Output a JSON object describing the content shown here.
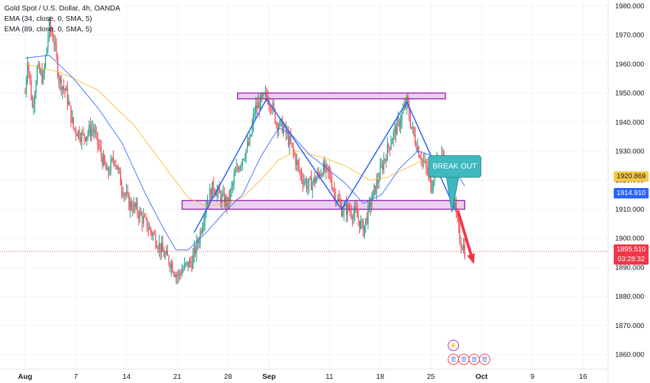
{
  "legend": {
    "title": "Gold Spot / U.S. Dollar, 4h, OANDA",
    "ema1": "EMA (34, close, 0, SMA, 5)",
    "ema2": "EMA (89, close, 0, SMA, 5)"
  },
  "annotation": {
    "breakout_label": "BREAK OUT"
  },
  "price_labels": {
    "ema89": "1920.869",
    "ema34": "1914.910",
    "last_price": "1895.510",
    "countdown": "03:28:32"
  },
  "colors": {
    "up": "#089981",
    "down": "#f23645",
    "ema34": "#2962ff",
    "ema89": "#f7b731",
    "zone_fill": "#e1bee7",
    "zone_stroke": "#9c27b0",
    "pattern_line": "#2962ff",
    "arrow": "#f23645",
    "callout": "#3fb8bf"
  },
  "events": [
    {
      "icon": "lightning-icon"
    },
    {
      "icon": "us-flag-icon"
    },
    {
      "icon": "us-flag-icon"
    },
    {
      "icon": "us-flag-icon"
    },
    {
      "icon": "us-flag-icon"
    }
  ],
  "chart_data": {
    "type": "candlestick",
    "title": "Gold Spot / U.S. Dollar, 4h, OANDA",
    "ylim": [
      1855,
      1982
    ],
    "y_ticks": [
      1860,
      1870,
      1880,
      1890,
      1900,
      1910,
      1920,
      1930,
      1940,
      1950,
      1960,
      1970,
      1980
    ],
    "y_tick_labels": [
      "1860.000",
      "1870.000",
      "1880.000",
      "1890.000",
      "1900.000",
      "1910.000",
      "1920.000",
      "1930.000",
      "1940.000",
      "1950.000",
      "1960.000",
      "1970.000",
      "1980.000"
    ],
    "x_tick_labels": [
      "Aug",
      "7",
      "14",
      "21",
      "28",
      "Sep",
      "11",
      "18",
      "25",
      "Oct",
      "9",
      "16"
    ],
    "x_tick_index": [
      0,
      42,
      84,
      126,
      168,
      202,
      252,
      294,
      336,
      378,
      420,
      462
    ],
    "price_path": [
      [
        0,
        1950
      ],
      [
        2,
        1962
      ],
      [
        6,
        1945
      ],
      [
        10,
        1958
      ],
      [
        15,
        1955
      ],
      [
        20,
        1973
      ],
      [
        24,
        1968
      ],
      [
        28,
        1955
      ],
      [
        34,
        1950
      ],
      [
        40,
        1938
      ],
      [
        48,
        1935
      ],
      [
        56,
        1938
      ],
      [
        62,
        1930
      ],
      [
        68,
        1922
      ],
      [
        74,
        1928
      ],
      [
        80,
        1918
      ],
      [
        86,
        1912
      ],
      [
        92,
        1910
      ],
      [
        100,
        1905
      ],
      [
        108,
        1900
      ],
      [
        114,
        1895
      ],
      [
        120,
        1892
      ],
      [
        126,
        1887
      ],
      [
        132,
        1890
      ],
      [
        138,
        1892
      ],
      [
        144,
        1900
      ],
      [
        150,
        1912
      ],
      [
        156,
        1918
      ],
      [
        162,
        1914
      ],
      [
        168,
        1912
      ],
      [
        174,
        1922
      ],
      [
        180,
        1928
      ],
      [
        186,
        1933
      ],
      [
        190,
        1944
      ],
      [
        195,
        1947
      ],
      [
        200,
        1949
      ],
      [
        204,
        1946
      ],
      [
        208,
        1940
      ],
      [
        214,
        1938
      ],
      [
        220,
        1932
      ],
      [
        228,
        1922
      ],
      [
        234,
        1918
      ],
      [
        240,
        1920
      ],
      [
        246,
        1924
      ],
      [
        252,
        1922
      ],
      [
        256,
        1916
      ],
      [
        262,
        1910
      ],
      [
        268,
        1910
      ],
      [
        274,
        1908
      ],
      [
        280,
        1903
      ],
      [
        286,
        1912
      ],
      [
        292,
        1920
      ],
      [
        298,
        1928
      ],
      [
        304,
        1935
      ],
      [
        310,
        1940
      ],
      [
        316,
        1947
      ],
      [
        320,
        1938
      ],
      [
        326,
        1930
      ],
      [
        332,
        1924
      ],
      [
        336,
        1918
      ],
      [
        340,
        1925
      ],
      [
        346,
        1928
      ],
      [
        352,
        1920
      ],
      [
        356,
        1910
      ],
      [
        360,
        1900
      ],
      [
        364,
        1896
      ]
    ],
    "ema34_path": [
      [
        0,
        1962
      ],
      [
        20,
        1963
      ],
      [
        40,
        1955
      ],
      [
        60,
        1945
      ],
      [
        80,
        1933
      ],
      [
        100,
        1915
      ],
      [
        115,
        1903
      ],
      [
        125,
        1896
      ],
      [
        135,
        1896
      ],
      [
        150,
        1902
      ],
      [
        165,
        1909
      ],
      [
        180,
        1915
      ],
      [
        195,
        1928
      ],
      [
        210,
        1938
      ],
      [
        220,
        1936
      ],
      [
        235,
        1929
      ],
      [
        250,
        1924
      ],
      [
        265,
        1919
      ],
      [
        280,
        1912
      ],
      [
        295,
        1915
      ],
      [
        310,
        1924
      ],
      [
        325,
        1930
      ],
      [
        340,
        1928
      ],
      [
        352,
        1926
      ],
      [
        364,
        1918
      ]
    ],
    "ema89_path": [
      [
        0,
        1960
      ],
      [
        30,
        1957
      ],
      [
        60,
        1951
      ],
      [
        90,
        1939
      ],
      [
        115,
        1925
      ],
      [
        135,
        1914
      ],
      [
        150,
        1911
      ],
      [
        165,
        1912
      ],
      [
        180,
        1914
      ],
      [
        195,
        1920
      ],
      [
        210,
        1927
      ],
      [
        225,
        1930
      ],
      [
        245,
        1928
      ],
      [
        265,
        1925
      ],
      [
        285,
        1920
      ],
      [
        300,
        1921
      ],
      [
        315,
        1924
      ],
      [
        330,
        1927
      ],
      [
        345,
        1926
      ],
      [
        364,
        1921
      ]
    ],
    "resistance_zone": {
      "x_start": 176,
      "x_end": 348,
      "y_low": 1948,
      "y_high": 1950
    },
    "support_zone": {
      "x_start": 130,
      "x_end": 364,
      "y_low": 1910,
      "y_high": 1913
    },
    "pattern_points": [
      [
        140,
        1902
      ],
      [
        200,
        1948
      ],
      [
        262,
        1910
      ],
      [
        316,
        1947
      ],
      [
        356,
        1910
      ]
    ],
    "breakout_arrow": {
      "from": [
        356,
        1910
      ],
      "to": [
        364,
        1893
      ]
    },
    "last_price": 1895.51,
    "ema34_last": 1914.91,
    "ema89_last": 1920.869
  }
}
